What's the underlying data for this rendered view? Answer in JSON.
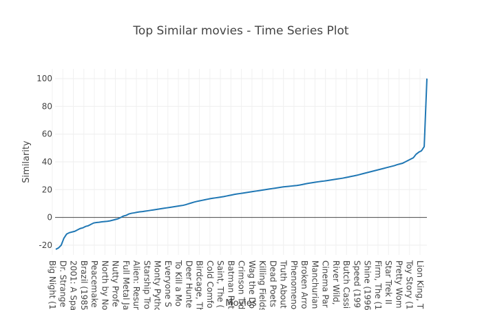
{
  "chart_data": {
    "type": "line",
    "title": "Top Similar movies - Time Series Plot",
    "xlabel": "Movies",
    "ylabel": "Similarity",
    "ylim": [
      -27,
      107
    ],
    "y_ticks": [
      -20,
      0,
      20,
      40,
      60,
      80,
      100
    ],
    "grid": true,
    "legend": "none",
    "line_color": "#1f77b4",
    "x_tick_labels": [
      "Big Night (1",
      "Dr. Strange",
      "2001: A Spa",
      "Brazil (1985",
      "Peacemake",
      "North by No",
      "Nutty Profe",
      "Full Metal Ja",
      "Alien: Resur",
      "Starship Tro",
      "Monty Pytho",
      "Everyone S",
      "To Kill a Mo",
      "Deer Hunte",
      "Birdcage, Th",
      "Cold Comfo",
      "Saint, The (",
      "Batman Ret",
      "Crimson Tid",
      "Wag the Do",
      "Killing Fields",
      "Dead Poets",
      "Truth About",
      "Phenomeno",
      "Broken Arro",
      "Manchurian",
      "Cinema Par",
      "River Wild,",
      "Butch Cassi",
      "Speed (199",
      "Shine (1996",
      "Firm, The (1",
      "Star Trek II",
      "Pretty Wom",
      "Toy Story (1",
      "Lion King, T"
    ],
    "series": [
      {
        "values": [
          -23,
          -22,
          -20,
          -15,
          -12,
          -11,
          -10.5,
          -10,
          -9,
          -8,
          -7.5,
          -6.5,
          -6,
          -5,
          -4,
          -3.7,
          -3.5,
          -3.2,
          -3,
          -2.8,
          -2.5,
          -2,
          -1.5,
          -1,
          0,
          1,
          1.5,
          2.5,
          3,
          3.3,
          3.7,
          4,
          4.2,
          4.5,
          4.8,
          5.1,
          5.4,
          5.7,
          6,
          6.3,
          6.6,
          6.9,
          7.2,
          7.5,
          7.8,
          8.1,
          8.4,
          8.7,
          9.2,
          9.8,
          10.4,
          11,
          11.5,
          11.9,
          12.3,
          12.7,
          13.1,
          13.5,
          13.8,
          14.1,
          14.4,
          14.7,
          15,
          15.4,
          15.8,
          16.2,
          16.6,
          16.9,
          17.2,
          17.5,
          17.8,
          18.1,
          18.4,
          18.7,
          19,
          19.3,
          19.6,
          19.9,
          20.2,
          20.5,
          20.8,
          21.1,
          21.4,
          21.7,
          22,
          22.2,
          22.4,
          22.6,
          22.8,
          23,
          23.3,
          23.7,
          24.1,
          24.5,
          24.8,
          25.1,
          25.4,
          25.7,
          26,
          26.2,
          26.5,
          26.8,
          27.1,
          27.4,
          27.7,
          28,
          28.3,
          28.7,
          29.1,
          29.5,
          29.9,
          30.3,
          30.8,
          31.3,
          31.8,
          32.3,
          32.8,
          33.3,
          33.8,
          34.3,
          34.8,
          35.3,
          35.8,
          36.3,
          36.8,
          37.3,
          38,
          38.5,
          39,
          40,
          41,
          42,
          43,
          45.5,
          47,
          48,
          51,
          100
        ]
      }
    ]
  }
}
